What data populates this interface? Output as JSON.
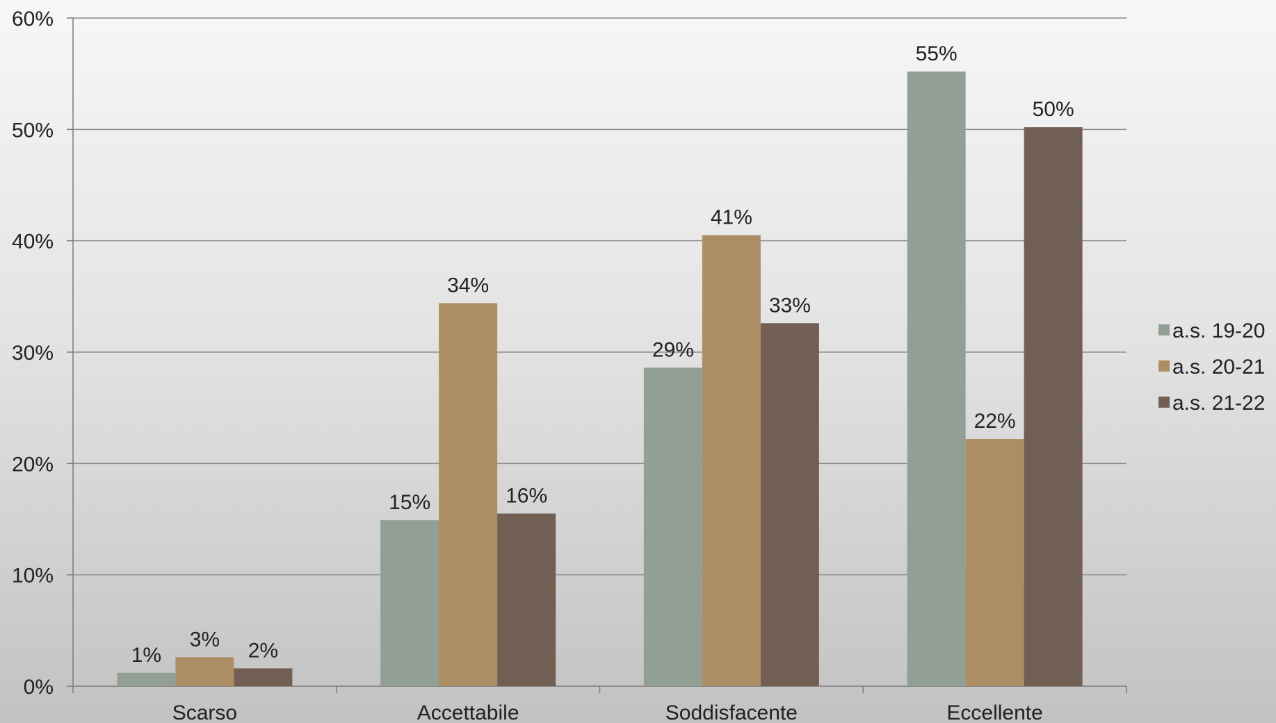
{
  "chart_data": {
    "type": "bar",
    "categories": [
      "Scarso",
      "Accettabile",
      "Soddisfacente",
      "Eccellente"
    ],
    "series": [
      {
        "name": "a.s. 19-20",
        "color": "#929f94",
        "values": [
          1.2,
          14.9,
          28.6,
          55.2
        ],
        "labels": [
          "1%",
          "15%",
          "29%",
          "55%"
        ]
      },
      {
        "name": "a.s. 20-21",
        "color": "#ad8d63",
        "values": [
          2.6,
          34.4,
          40.5,
          22.2
        ],
        "labels": [
          "3%",
          "34%",
          "41%",
          "22%"
        ]
      },
      {
        "name": "a.s. 21-22",
        "color": "#725f53",
        "values": [
          1.6,
          15.5,
          32.6,
          50.2
        ],
        "labels": [
          "2%",
          "16%",
          "33%",
          "50%"
        ]
      }
    ],
    "y_ticks": [
      "0%",
      "10%",
      "20%",
      "30%",
      "40%",
      "50%",
      "60%"
    ],
    "ylim": [
      0,
      60
    ],
    "grid": true,
    "legend": "right",
    "title": "",
    "xlabel": "",
    "ylabel": ""
  }
}
